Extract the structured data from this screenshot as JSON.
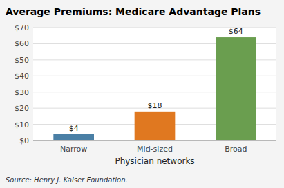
{
  "chart_data": {
    "type": "bar",
    "title": "Average Premiums: Medicare Advantage Plans",
    "categories": [
      "Narrow",
      "Mid-sized",
      "Broad"
    ],
    "values": [
      4,
      18,
      64
    ],
    "value_labels": [
      "$4",
      "$18",
      "$64"
    ],
    "colors": [
      "#4a7fa5",
      "#e07820",
      "#6a9e4f"
    ],
    "data_labels": true,
    "x_label": "Physician networks",
    "ylim": [
      0,
      70
    ],
    "yticks": [
      {
        "value": 0,
        "label": "$0"
      },
      {
        "value": 10,
        "label": "$10"
      },
      {
        "value": 20,
        "label": "$20"
      },
      {
        "value": 30,
        "label": "$30"
      },
      {
        "value": 40,
        "label": "$40"
      },
      {
        "value": 50,
        "label": "$50"
      },
      {
        "value": 60,
        "label": "$60"
      },
      {
        "value": 70,
        "label": "$70"
      }
    ],
    "grid": true,
    "source": "Source: Henry J. Kaiser Foundation."
  }
}
